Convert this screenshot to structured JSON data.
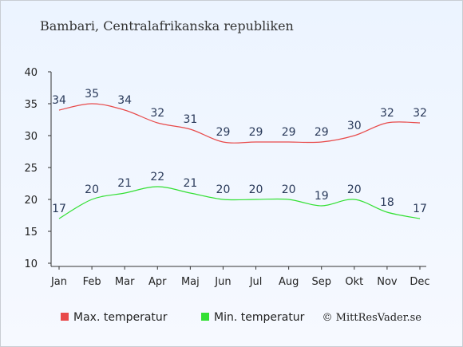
{
  "chart_data": {
    "type": "line",
    "title": "Bambari, Centralafrikanska republiken",
    "categories": [
      "Jan",
      "Feb",
      "Mar",
      "Apr",
      "Maj",
      "Jun",
      "Jul",
      "Aug",
      "Sep",
      "Okt",
      "Nov",
      "Dec"
    ],
    "series": [
      {
        "name": "Max. temperatur",
        "color": "#e84a4a",
        "values": [
          34,
          35,
          34,
          32,
          31,
          29,
          29,
          29,
          29,
          30,
          32,
          32
        ]
      },
      {
        "name": "Min. temperatur",
        "color": "#33e033",
        "values": [
          17,
          20,
          21,
          22,
          21,
          20,
          20,
          20,
          19,
          20,
          18,
          17
        ]
      }
    ],
    "yticks": [
      10,
      15,
      20,
      25,
      30,
      35,
      40
    ],
    "ylim": [
      10,
      40
    ],
    "legend_position": "bottom-left",
    "grid": false
  },
  "footer": {
    "credit": "© MittResVader.se"
  }
}
